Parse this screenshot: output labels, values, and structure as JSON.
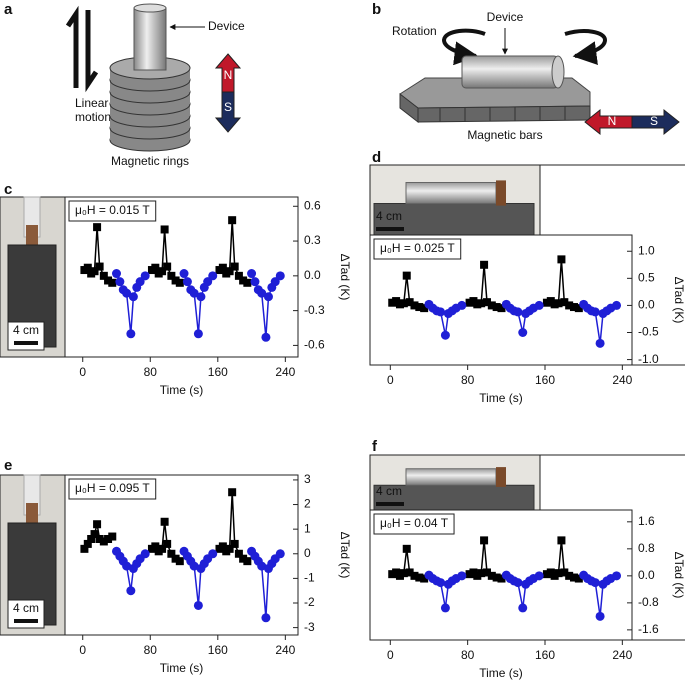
{
  "panels": [
    "a",
    "b",
    "c",
    "d",
    "e",
    "f"
  ],
  "diagram_a": {
    "motion": [
      "Linear",
      "motion"
    ],
    "device": "Device",
    "north": "N",
    "south": "S",
    "caption": "Magnetic rings"
  },
  "diagram_b": {
    "rotation": "Rotation",
    "device": "Device",
    "north": "N",
    "south": "S",
    "caption": "Magnetic bars"
  },
  "chart_data": [
    {
      "type": "scatter-line",
      "annotation": "μ₀H = 0.015 T",
      "y_label": "ΔTad (K)",
      "x_label": "Time (s)",
      "scale_bar": "4 cm",
      "xlim": [
        -21,
        255
      ],
      "xticks": [
        0,
        80,
        160,
        240
      ],
      "ylim": [
        -0.7,
        0.68
      ],
      "yticks": [
        -0.6,
        -0.3,
        {
          "value": 0,
          "label": "0.0"
        },
        0.3,
        0.6
      ],
      "series": [
        {
          "color": "#000000",
          "marker": "square",
          "x": [
            2,
            6,
            10,
            14,
            17,
            20,
            25,
            30,
            35,
            null,
            82,
            86,
            90,
            94,
            97,
            100,
            105,
            110,
            115,
            null,
            162,
            166,
            170,
            174,
            177,
            180,
            185,
            190,
            195
          ],
          "values": [
            0.05,
            0.07,
            0.02,
            0.04,
            0.42,
            0.08,
            0.0,
            -0.04,
            -0.06,
            null,
            0.05,
            0.07,
            0.02,
            0.04,
            0.4,
            0.08,
            0.0,
            -0.04,
            -0.06,
            null,
            0.05,
            0.07,
            0.02,
            0.04,
            0.48,
            0.08,
            0.0,
            -0.04,
            -0.06
          ]
        },
        {
          "color": "#1f1fd6",
          "marker": "circle",
          "x": [
            40,
            44,
            48,
            52,
            57,
            60,
            64,
            68,
            74,
            null,
            120,
            124,
            128,
            132,
            137,
            140,
            144,
            148,
            154,
            null,
            200,
            204,
            208,
            212,
            217,
            220,
            224,
            228,
            234
          ],
          "values": [
            0.02,
            -0.05,
            -0.12,
            -0.15,
            -0.5,
            -0.18,
            -0.1,
            -0.05,
            0.0,
            null,
            0.02,
            -0.05,
            -0.12,
            -0.15,
            -0.5,
            -0.18,
            -0.1,
            -0.05,
            0.0,
            null,
            0.02,
            -0.05,
            -0.12,
            -0.15,
            -0.53,
            -0.18,
            -0.1,
            -0.05,
            0.0
          ]
        }
      ]
    },
    {
      "type": "scatter-line",
      "annotation": "μ₀H = 0.025 T",
      "y_label": "ΔTad (K)",
      "x_label": "Time (s)",
      "scale_bar": "4 cm",
      "xlim": [
        -21,
        250
      ],
      "xticks": [
        0,
        80,
        160,
        240
      ],
      "ylim": [
        -1.1,
        1.3
      ],
      "yticks": [
        {
          "value": -1,
          "label": "-1.0"
        },
        -0.5,
        {
          "value": 0,
          "label": "0.0"
        },
        0.5,
        {
          "value": 1,
          "label": "1.0"
        }
      ],
      "series": [
        {
          "color": "#000000",
          "marker": "square",
          "x": [
            2,
            6,
            10,
            14,
            17,
            20,
            25,
            30,
            35,
            null,
            82,
            86,
            90,
            94,
            97,
            100,
            105,
            110,
            115,
            null,
            162,
            166,
            170,
            174,
            177,
            180,
            185,
            190,
            195
          ],
          "values": [
            0.05,
            0.08,
            0.02,
            0.04,
            0.55,
            0.06,
            0.0,
            -0.03,
            -0.05,
            null,
            0.05,
            0.08,
            0.02,
            0.04,
            0.75,
            0.06,
            0.0,
            -0.03,
            -0.05,
            null,
            0.05,
            0.08,
            0.02,
            0.04,
            0.85,
            0.06,
            0.0,
            -0.03,
            -0.05
          ]
        },
        {
          "color": "#1f1fd6",
          "marker": "circle",
          "x": [
            40,
            44,
            48,
            52,
            57,
            60,
            64,
            68,
            74,
            null,
            120,
            124,
            128,
            132,
            137,
            140,
            144,
            148,
            154,
            null,
            200,
            204,
            208,
            212,
            217,
            220,
            224,
            228,
            234
          ],
          "values": [
            0.02,
            -0.05,
            -0.1,
            -0.12,
            -0.55,
            -0.15,
            -0.1,
            -0.05,
            0.0,
            null,
            0.02,
            -0.05,
            -0.1,
            -0.12,
            -0.5,
            -0.15,
            -0.1,
            -0.05,
            0.0,
            null,
            0.02,
            -0.05,
            -0.1,
            -0.12,
            -0.7,
            -0.15,
            -0.1,
            -0.05,
            0.0
          ]
        }
      ]
    },
    {
      "type": "scatter-line",
      "annotation": "μ₀H = 0.095 T",
      "y_label": "ΔTad (K)",
      "x_label": "Time (s)",
      "scale_bar": "4 cm",
      "xlim": [
        -21,
        255
      ],
      "xticks": [
        0,
        80,
        160,
        240
      ],
      "ylim": [
        -3.3,
        3.2
      ],
      "yticks": [
        -3,
        -2,
        -1,
        0,
        1,
        2,
        3
      ],
      "series": [
        {
          "color": "#000000",
          "marker": "square",
          "x": [
            2,
            6,
            10,
            14,
            17,
            20,
            25,
            30,
            35,
            null,
            82,
            86,
            90,
            94,
            97,
            100,
            105,
            110,
            115,
            null,
            162,
            166,
            170,
            174,
            177,
            180,
            185,
            190,
            195
          ],
          "values": [
            0.2,
            0.4,
            0.6,
            0.8,
            1.2,
            0.6,
            0.5,
            0.6,
            0.7,
            null,
            0.2,
            0.3,
            0.1,
            0.2,
            1.3,
            0.4,
            0.0,
            -0.2,
            -0.3,
            null,
            0.2,
            0.3,
            0.1,
            0.2,
            2.5,
            0.4,
            0.0,
            -0.2,
            -0.3
          ]
        },
        {
          "color": "#1f1fd6",
          "marker": "circle",
          "x": [
            40,
            44,
            48,
            52,
            57,
            60,
            64,
            68,
            74,
            null,
            120,
            124,
            128,
            132,
            137,
            140,
            144,
            148,
            154,
            null,
            200,
            204,
            208,
            212,
            217,
            220,
            224,
            228,
            234
          ],
          "values": [
            0.1,
            -0.1,
            -0.3,
            -0.5,
            -1.5,
            -0.6,
            -0.4,
            -0.2,
            0.0,
            null,
            0.1,
            -0.1,
            -0.3,
            -0.5,
            -2.1,
            -0.6,
            -0.4,
            -0.2,
            0.0,
            null,
            0.1,
            -0.1,
            -0.3,
            -0.5,
            -2.6,
            -0.6,
            -0.4,
            -0.2,
            0.0
          ]
        }
      ]
    },
    {
      "type": "scatter-line",
      "annotation": "μ₀H = 0.04 T",
      "y_label": "ΔTad (K)",
      "x_label": "Time (s)",
      "scale_bar": "4 cm",
      "xlim": [
        -21,
        250
      ],
      "xticks": [
        0,
        80,
        160,
        240
      ],
      "ylim": [
        -1.9,
        1.95
      ],
      "yticks": [
        -1.6,
        -0.8,
        {
          "value": 0,
          "label": "0.0"
        },
        0.8,
        1.6
      ],
      "series": [
        {
          "color": "#000000",
          "marker": "square",
          "x": [
            2,
            6,
            10,
            14,
            17,
            20,
            25,
            30,
            35,
            null,
            82,
            86,
            90,
            94,
            97,
            100,
            105,
            110,
            115,
            null,
            162,
            166,
            170,
            174,
            177,
            180,
            185,
            190,
            195
          ],
          "values": [
            0.05,
            0.1,
            0.0,
            0.08,
            0.8,
            0.1,
            0.0,
            -0.05,
            -0.08,
            null,
            0.05,
            0.1,
            0.0,
            0.08,
            1.05,
            0.1,
            0.0,
            -0.05,
            -0.08,
            null,
            0.05,
            0.1,
            0.0,
            0.08,
            1.05,
            0.1,
            0.0,
            -0.05,
            -0.08
          ]
        },
        {
          "color": "#1f1fd6",
          "marker": "circle",
          "x": [
            40,
            44,
            48,
            52,
            57,
            60,
            64,
            68,
            74,
            null,
            120,
            124,
            128,
            132,
            137,
            140,
            144,
            148,
            154,
            null,
            200,
            204,
            208,
            212,
            217,
            220,
            224,
            228,
            234
          ],
          "values": [
            0.02,
            -0.08,
            -0.15,
            -0.2,
            -0.95,
            -0.25,
            -0.15,
            -0.08,
            0.0,
            null,
            0.02,
            -0.08,
            -0.15,
            -0.2,
            -0.95,
            -0.25,
            -0.15,
            -0.08,
            0.0,
            null,
            0.02,
            -0.08,
            -0.15,
            -0.2,
            -1.2,
            -0.25,
            -0.15,
            -0.08,
            0.0
          ]
        }
      ]
    }
  ]
}
